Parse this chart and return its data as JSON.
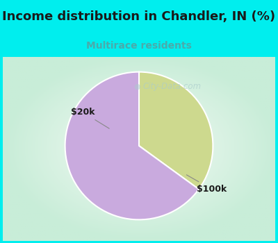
{
  "title": "Income distribution in Chandler, IN (%)",
  "subtitle": "Multirace residents",
  "subtitle_color": "#4aabab",
  "title_color": "#1a1a1a",
  "slices": [
    0.35,
    0.65
  ],
  "labels": [
    "$20k",
    "$100k"
  ],
  "colors": [
    "#cdd98e",
    "#c9aade"
  ],
  "bg_color": "#00EEEE",
  "chart_bg_edge": "#c8edd8",
  "chart_bg_center": "#f5faf5",
  "start_angle": 90,
  "watermark": "City-Data.com",
  "title_fontsize": 13,
  "subtitle_fontsize": 10,
  "label_fontsize": 9
}
